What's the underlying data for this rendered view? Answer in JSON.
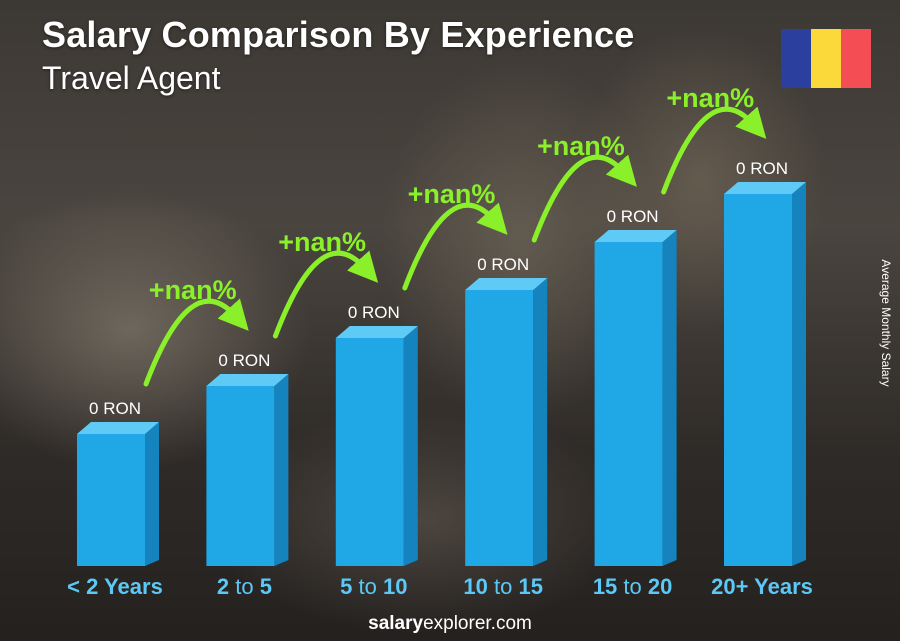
{
  "title": "Salary Comparison By Experience",
  "subtitle": "Travel Agent",
  "ylabel": "Average Monthly Salary",
  "footer": {
    "brand_bold": "salary",
    "brand_rest": "explorer.com"
  },
  "colors": {
    "bar_front": "#1fa7e6",
    "bar_side": "#1583be",
    "bar_top": "#5fcaf5",
    "growth_green": "#8af02a",
    "category_blue": "#5cc8f5",
    "flag": [
      "#2a3f9e",
      "#fcd93b",
      "#f44d53"
    ]
  },
  "chart_data": {
    "type": "bar",
    "categories": [
      {
        "parts": [
          {
            "text": "< 2 Years",
            "bold": true
          }
        ]
      },
      {
        "parts": [
          {
            "text": "2",
            "bold": true
          },
          {
            "text": " to ",
            "bold": false
          },
          {
            "text": "5",
            "bold": true
          }
        ]
      },
      {
        "parts": [
          {
            "text": "5",
            "bold": true
          },
          {
            "text": " to ",
            "bold": false
          },
          {
            "text": "10",
            "bold": true
          }
        ]
      },
      {
        "parts": [
          {
            "text": "10",
            "bold": true
          },
          {
            "text": " to ",
            "bold": false
          },
          {
            "text": "15",
            "bold": true
          }
        ]
      },
      {
        "parts": [
          {
            "text": "15",
            "bold": true
          },
          {
            "text": " to ",
            "bold": false
          },
          {
            "text": "20",
            "bold": true
          }
        ]
      },
      {
        "parts": [
          {
            "text": "20+ Years",
            "bold": true
          }
        ]
      }
    ],
    "values": [
      0,
      0,
      0,
      0,
      0,
      0
    ],
    "value_labels": [
      "0 RON",
      "0 RON",
      "0 RON",
      "0 RON",
      "0 RON",
      "0 RON"
    ],
    "bar_levels": [
      0.33,
      0.45,
      0.57,
      0.69,
      0.81,
      0.93
    ],
    "growth_labels": [
      "+nan%",
      "+nan%",
      "+nan%",
      "+nan%",
      "+nan%"
    ],
    "unit": "RON",
    "grid": false,
    "legend": "none"
  }
}
